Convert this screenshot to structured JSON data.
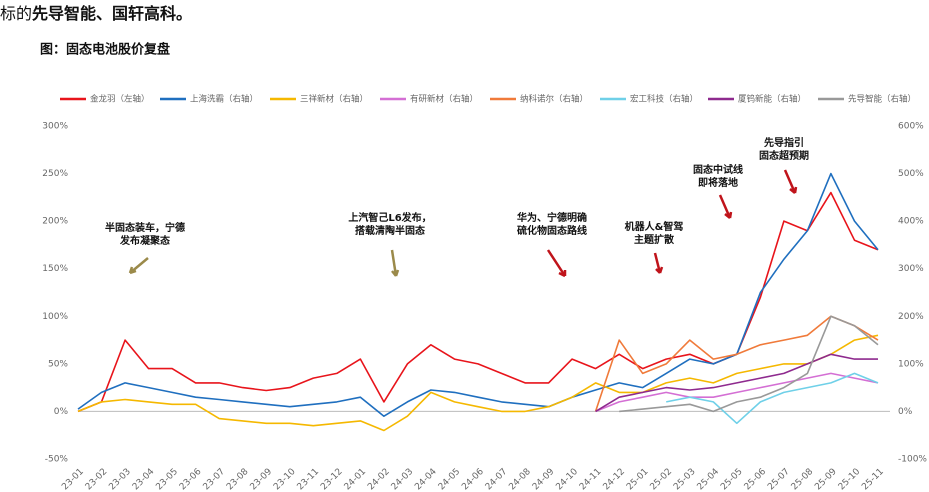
{
  "header": {
    "lead": "标的",
    "lead_bold": "先导智能、国轩高科。",
    "figure_title": "图：固态电池股价复盘"
  },
  "chart_data": {
    "type": "line",
    "categories": [
      "23-01",
      "23-02",
      "23-03",
      "23-04",
      "23-05",
      "23-06",
      "23-07",
      "23-08",
      "23-09",
      "23-10",
      "23-11",
      "23-12",
      "24-01",
      "24-02",
      "24-03",
      "24-04",
      "24-05",
      "24-06",
      "24-07",
      "24-08",
      "24-09",
      "24-10",
      "24-11",
      "24-12",
      "25-01",
      "25-02",
      "25-03",
      "25-04",
      "25-05",
      "25-06",
      "25-07",
      "25-08",
      "25-09",
      "25-10",
      "25-11"
    ],
    "ylim": [
      -50,
      300
    ],
    "yticks": [
      {
        "value": -50,
        "label": "-50%"
      },
      {
        "value": 0,
        "label": "0%"
      },
      {
        "value": 50,
        "label": "50%"
      },
      {
        "value": 100,
        "label": "100%"
      },
      {
        "value": 150,
        "label": "150%"
      },
      {
        "value": 200,
        "label": "200%"
      },
      {
        "value": 250,
        "label": "250%"
      },
      {
        "value": 300,
        "label": "300%"
      }
    ],
    "y2lim": [
      -100,
      600
    ],
    "y2ticks": [
      {
        "value": -100,
        "label": "-100%"
      },
      {
        "value": 0,
        "label": "0%"
      },
      {
        "value": 100,
        "label": "100%"
      },
      {
        "value": 200,
        "label": "200%"
      },
      {
        "value": 300,
        "label": "300%"
      },
      {
        "value": 400,
        "label": "400%"
      },
      {
        "value": 500,
        "label": "500%"
      },
      {
        "value": 600,
        "label": "600%"
      }
    ],
    "series": [
      {
        "name": "金龙羽（左轴）",
        "color": "#e8141b",
        "values": [
          0,
          10,
          75,
          45,
          45,
          30,
          30,
          25,
          22,
          25,
          35,
          40,
          55,
          10,
          50,
          70,
          55,
          50,
          40,
          30,
          30,
          55,
          45,
          60,
          45,
          55,
          60,
          50,
          60,
          120,
          200,
          190,
          230,
          180,
          170
        ]
      },
      {
        "name": "上海洗霸（右轴）",
        "color": "#1f6fbf",
        "axis": "y2",
        "values": [
          5,
          40,
          60,
          50,
          40,
          30,
          25,
          20,
          15,
          10,
          15,
          20,
          30,
          -10,
          20,
          45,
          40,
          30,
          20,
          15,
          10,
          30,
          45,
          60,
          50,
          80,
          110,
          100,
          120,
          250,
          320,
          380,
          500,
          400,
          340
        ]
      },
      {
        "name": "三祥新材（右轴）",
        "color": "#f5b800",
        "axis": "y2",
        "values": [
          0,
          20,
          25,
          20,
          15,
          15,
          -15,
          -20,
          -25,
          -25,
          -30,
          -25,
          -20,
          -40,
          -10,
          40,
          20,
          10,
          0,
          0,
          10,
          30,
          60,
          40,
          40,
          60,
          70,
          60,
          80,
          90,
          100,
          100,
          120,
          150,
          160
        ]
      },
      {
        "name": "有研新材（右轴）",
        "color": "#d46fd4",
        "axis": "y2",
        "values": [
          null,
          null,
          null,
          null,
          null,
          null,
          null,
          null,
          null,
          null,
          null,
          null,
          null,
          null,
          null,
          null,
          null,
          null,
          null,
          null,
          null,
          null,
          0,
          20,
          30,
          40,
          30,
          30,
          40,
          50,
          60,
          70,
          80,
          70,
          60
        ]
      },
      {
        "name": "纳科诺尔（右轴）",
        "color": "#f07a3a",
        "axis": "y2",
        "values": [
          null,
          null,
          null,
          null,
          null,
          null,
          null,
          null,
          null,
          null,
          null,
          null,
          null,
          null,
          null,
          null,
          null,
          null,
          null,
          null,
          null,
          null,
          0,
          150,
          80,
          100,
          150,
          110,
          120,
          140,
          150,
          160,
          200,
          180,
          150
        ]
      },
      {
        "name": "宏工科技（右轴）",
        "color": "#6fd0e8",
        "axis": "y2",
        "values": [
          null,
          null,
          null,
          null,
          null,
          null,
          null,
          null,
          null,
          null,
          null,
          null,
          null,
          null,
          null,
          null,
          null,
          null,
          null,
          null,
          null,
          null,
          null,
          null,
          null,
          20,
          30,
          20,
          -25,
          20,
          40,
          50,
          60,
          80,
          60
        ]
      },
      {
        "name": "厦钨新能（右轴）",
        "color": "#8e2a8e",
        "axis": "y2",
        "values": [
          null,
          null,
          null,
          null,
          null,
          null,
          null,
          null,
          null,
          null,
          null,
          null,
          null,
          null,
          null,
          null,
          null,
          null,
          null,
          null,
          null,
          null,
          0,
          30,
          40,
          50,
          45,
          50,
          60,
          70,
          80,
          100,
          120,
          110,
          110
        ]
      },
      {
        "name": "先导智能（右轴）",
        "color": "#999999",
        "axis": "y2",
        "values": [
          null,
          null,
          null,
          null,
          null,
          null,
          null,
          null,
          null,
          null,
          null,
          null,
          null,
          null,
          null,
          null,
          null,
          null,
          null,
          null,
          null,
          null,
          null,
          0,
          5,
          10,
          15,
          0,
          20,
          30,
          50,
          80,
          200,
          180,
          140
        ]
      }
    ],
    "annotations": [
      [
        "半固态装车，宁德",
        "发布凝聚态"
      ],
      [
        "上汽智己L6发布，",
        "搭载清陶半固态"
      ],
      [
        "华为、宁德明确",
        "硫化物固态路线"
      ],
      [
        "机器人&智驾",
        "主题扩散"
      ],
      [
        "固态中试线",
        "即将落地"
      ],
      [
        "先导指引",
        "固态超预期"
      ]
    ]
  }
}
